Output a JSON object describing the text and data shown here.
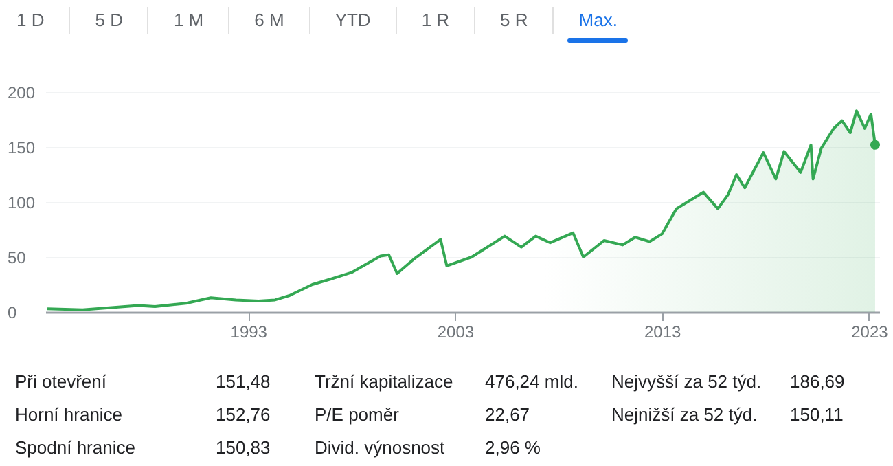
{
  "chart_data": {
    "type": "area",
    "x": [
      1983.3,
      1985,
      1987.7,
      1988.5,
      1990,
      1991.2,
      1992.4,
      1993.5,
      1994.3,
      1995,
      1996.1,
      1997,
      1998,
      1999.4,
      1999.8,
      2000.2,
      2001,
      2002.3,
      2002.6,
      2003.8,
      2005.4,
      2006.2,
      2006.9,
      2007.6,
      2008.7,
      2009.2,
      2010.2,
      2011.1,
      2011.7,
      2012.4,
      2013,
      2013.7,
      2014.4,
      2015,
      2015.7,
      2016.2,
      2016.6,
      2017,
      2017.9,
      2018.5,
      2018.9,
      2019.7,
      2020.2,
      2020.3,
      2020.7,
      2021.3,
      2021.7,
      2022.1,
      2022.4,
      2022.8,
      2023.1,
      2023.3
    ],
    "series": [
      {
        "color": "#34a853",
        "values": [
          3,
          2,
          6,
          5,
          8,
          13,
          11,
          10,
          11,
          15,
          25,
          30,
          36,
          51,
          52,
          35,
          48,
          66,
          42,
          50,
          69,
          59,
          69,
          63,
          72,
          50,
          65,
          61,
          68,
          64,
          71,
          94,
          102,
          109,
          94,
          107,
          125,
          113,
          145,
          121,
          146,
          127,
          152,
          121,
          149,
          167,
          174,
          163,
          183,
          167,
          180,
          152
        ]
      }
    ],
    "xlim": [
      1983.2,
      2023.5
    ],
    "xticks": [
      1993,
      2003,
      2013,
      2023
    ],
    "ylim": [
      0,
      200
    ],
    "yticks": [
      0,
      50,
      100,
      150,
      200
    ],
    "grid": "y",
    "annotations": [
      "1 D",
      "5 D",
      "1 M",
      "6 M",
      "YTD",
      "1 R",
      "5 R",
      "Max.",
      "Při otevření",
      "151,48",
      "Horní hranice",
      "152,76",
      "Spodní hranice",
      "150,83",
      "Tržní kapitalizace",
      "476,24 mld.",
      "P/E poměr",
      "22,67",
      "Divid. výnosnost",
      "2,96 %",
      "Nejvyšší za 52 týd.",
      "186,69",
      "Nejnižší za 52 týd.",
      "150,11"
    ]
  }
}
